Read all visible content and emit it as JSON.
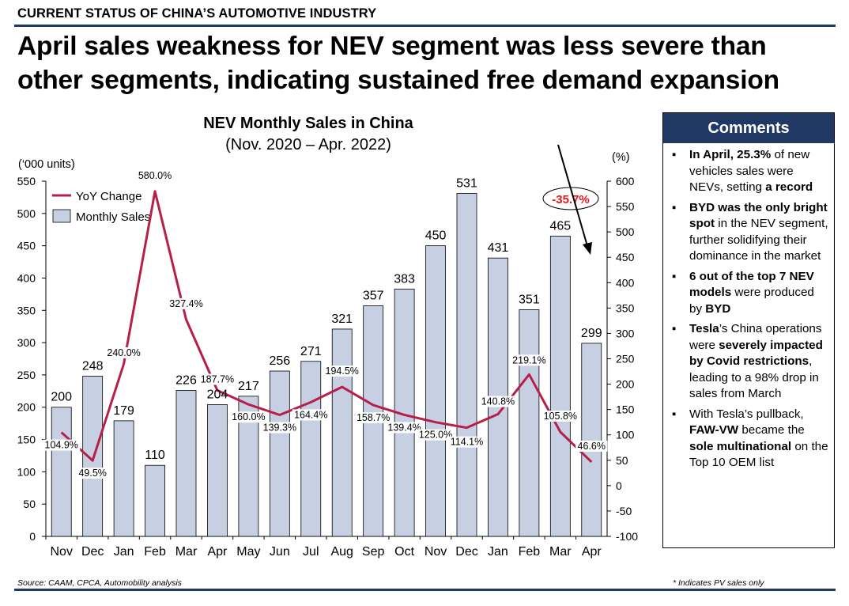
{
  "header": {
    "section": "CURRENT STATUS OF CHINA’S AUTOMOTIVE INDUSTRY",
    "headline_line1": "April sales weakness for NEV segment was less severe than",
    "headline_line2": "other segments, indicating sustained free demand expansion"
  },
  "chart_data": {
    "type": "bar",
    "title": "NEV Monthly Sales in China",
    "subtitle": "(Nov. 2020 – Apr. 2022)",
    "ylabel": "(‘000 units)",
    "y2label": "(%)",
    "categories": [
      "Nov",
      "Dec",
      "Jan",
      "Feb",
      "Mar",
      "Apr",
      "May",
      "Jun",
      "Jul",
      "Aug",
      "Sep",
      "Oct",
      "Nov",
      "Dec",
      "Jan",
      "Feb",
      "Mar",
      "Apr"
    ],
    "ylim": [
      0,
      550
    ],
    "y_ticks": [
      0,
      50,
      100,
      150,
      200,
      250,
      300,
      350,
      400,
      450,
      500,
      550
    ],
    "y2lim": [
      -100,
      600
    ],
    "y2_ticks": [
      -100,
      -50,
      0,
      50,
      100,
      150,
      200,
      250,
      300,
      350,
      400,
      450,
      500,
      550,
      600
    ],
    "grid": false,
    "legend_position": "top-left",
    "series": [
      {
        "name": "Monthly Sales",
        "type": "bar",
        "axis": "left",
        "color": "#c7d0e2",
        "values": [
          200,
          248,
          179,
          110,
          226,
          204,
          217,
          256,
          271,
          321,
          357,
          383,
          450,
          531,
          431,
          351,
          465,
          299
        ],
        "labels": [
          "200",
          "248",
          "179",
          "110",
          "226",
          "204",
          "217",
          "256",
          "271",
          "321",
          "357",
          "383",
          "450",
          "531",
          "431",
          "351",
          "465",
          "299"
        ]
      },
      {
        "name": "YoY Change",
        "type": "line",
        "axis": "right",
        "color": "#b51f48",
        "values": [
          104.9,
          49.5,
          240.0,
          580.0,
          327.4,
          187.7,
          160.0,
          139.3,
          164.4,
          194.5,
          158.7,
          139.4,
          125.0,
          114.1,
          140.8,
          219.1,
          105.8,
          46.6
        ],
        "labels": [
          "104.9%",
          "49.5%",
          "240.0%",
          "580.0%",
          "327.4%",
          "187.7%",
          "160.0%",
          "139.3%",
          "164.4%",
          "194.5%",
          "158.7%",
          "139.4%",
          "125.0%",
          "114.1%",
          "140.8%",
          "219.1%",
          "105.8%",
          "46.6%"
        ]
      }
    ],
    "annotation": {
      "text": "-35.7%",
      "color": "#e8141c"
    }
  },
  "comments": {
    "title": "Comments",
    "items": [
      [
        {
          "t": "In April, 25.3%",
          "b": true
        },
        {
          "t": " of new vehicles sales were NEVs, setting ",
          "b": false
        },
        {
          "t": "a record",
          "b": true
        }
      ],
      [
        {
          "t": "BYD was the only bright spot",
          "b": true
        },
        {
          "t": " in the NEV segment, further solidifying their dominance in the market",
          "b": false
        }
      ],
      [
        {
          "t": "6 out of the top 7 NEV models",
          "b": true
        },
        {
          "t": " were produced by ",
          "b": false
        },
        {
          "t": "BYD",
          "b": true
        }
      ],
      [
        {
          "t": "Tesla",
          "b": true
        },
        {
          "t": "’s China operations were ",
          "b": false
        },
        {
          "t": "severely impacted by Covid restrictions",
          "b": true
        },
        {
          "t": ", leading to a 98% drop in sales from March",
          "b": false
        }
      ],
      [
        {
          "t": "With Tesla’s pullback, ",
          "b": false
        },
        {
          "t": "FAW-VW",
          "b": true
        },
        {
          "t": " became the ",
          "b": false
        },
        {
          "t": "sole multinational",
          "b": true
        },
        {
          "t": " on the Top 10 OEM list",
          "b": false
        }
      ]
    ]
  },
  "footer": {
    "source": "Source: CAAM, CPCA, Automobility analysis",
    "note": "* Indicates PV sales only"
  }
}
